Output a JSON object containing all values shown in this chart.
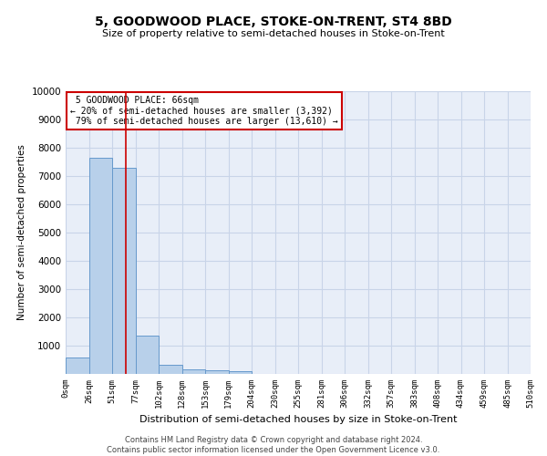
{
  "title": "5, GOODWOOD PLACE, STOKE-ON-TRENT, ST4 8BD",
  "subtitle": "Size of property relative to semi-detached houses in Stoke-on-Trent",
  "xlabel": "Distribution of semi-detached houses by size in Stoke-on-Trent",
  "ylabel": "Number of semi-detached properties",
  "footer_line1": "Contains HM Land Registry data © Crown copyright and database right 2024.",
  "footer_line2": "Contains public sector information licensed under the Open Government Licence v3.0.",
  "bar_labels": [
    "0sqm",
    "26sqm",
    "51sqm",
    "77sqm",
    "102sqm",
    "128sqm",
    "153sqm",
    "179sqm",
    "204sqm",
    "230sqm",
    "255sqm",
    "281sqm",
    "306sqm",
    "332sqm",
    "357sqm",
    "383sqm",
    "408sqm",
    "434sqm",
    "459sqm",
    "485sqm",
    "510sqm"
  ],
  "bar_values": [
    570,
    7650,
    7280,
    1370,
    330,
    170,
    130,
    90,
    0,
    0,
    0,
    0,
    0,
    0,
    0,
    0,
    0,
    0,
    0,
    0
  ],
  "bar_color": "#b8d0ea",
  "bar_edge_color": "#6699cc",
  "grid_color": "#c8d4e8",
  "background_color": "#e8eef8",
  "annotation_box_color": "#cc0000",
  "property_line_x": 66,
  "property_size": 66,
  "smaller_pct": 20,
  "smaller_count": 3392,
  "larger_pct": 79,
  "larger_count": 13610,
  "ylim": [
    0,
    10000
  ],
  "yticks": [
    0,
    1000,
    2000,
    3000,
    4000,
    5000,
    6000,
    7000,
    8000,
    9000,
    10000
  ],
  "num_bins": 20,
  "xmax": 510
}
